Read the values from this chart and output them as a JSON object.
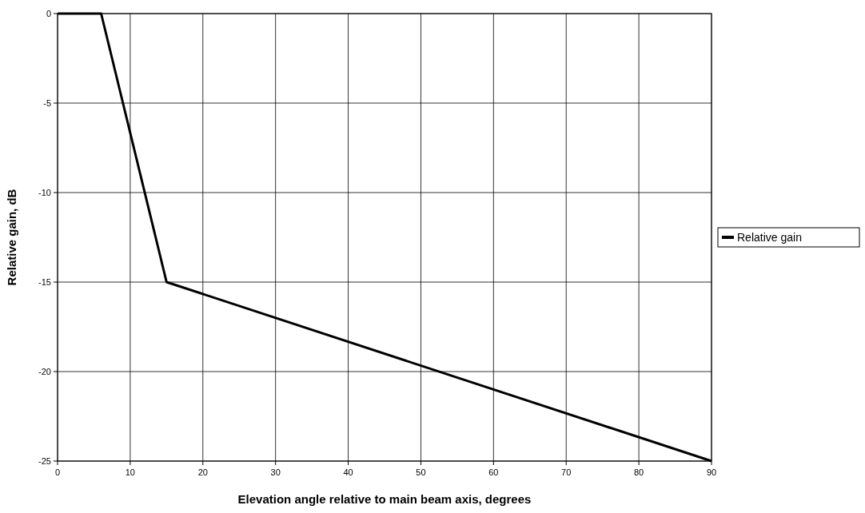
{
  "chart_data": {
    "type": "line",
    "xlabel": "Elevation angle relative to main beam axis, degrees",
    "ylabel": "Relative gain, dB",
    "series": [
      {
        "name": "Relative gain",
        "color": "#000000",
        "x": [
          0,
          6,
          15,
          90
        ],
        "values": [
          0,
          0,
          -15,
          -25
        ]
      }
    ],
    "xlim": [
      0,
      90
    ],
    "xticks": [
      0,
      10,
      20,
      30,
      40,
      50,
      60,
      70,
      80,
      90
    ],
    "ylim": [
      -25,
      0
    ],
    "yticks": [
      -25,
      -20,
      -15,
      -10,
      -5,
      0
    ],
    "grid": true,
    "legend": "right",
    "marker": "none",
    "line_style": "solid"
  }
}
